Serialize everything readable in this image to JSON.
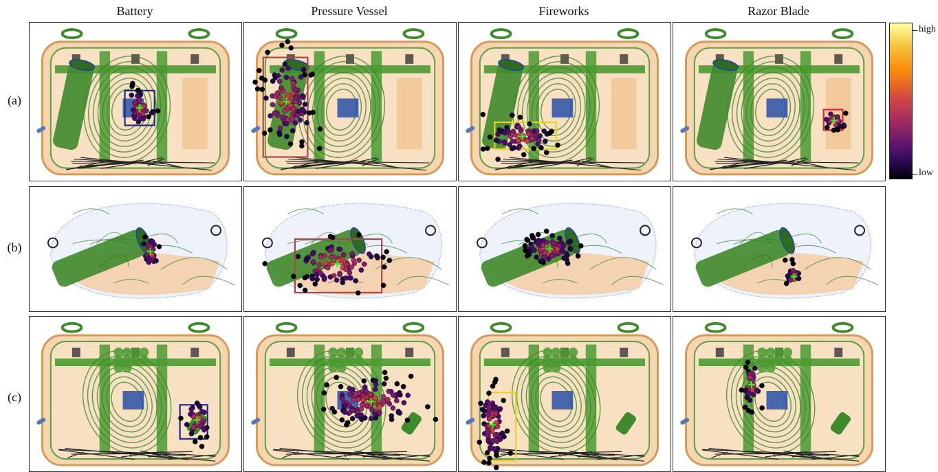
{
  "columns": [
    "Battery",
    "Pressure Vessel",
    "Fireworks",
    "Razor Blade"
  ],
  "rows": [
    "(a)",
    "(b)",
    "(c)"
  ],
  "colorbar": {
    "high_label": "high",
    "low_label": "low",
    "colormap": "inferno",
    "colors": [
      "#fcffa4",
      "#f98c0a",
      "#d44842",
      "#6a176e",
      "#000004"
    ]
  },
  "box_colors": {
    "Battery": "#1f2a8a",
    "Pressure Vessel": "#a8484a",
    "Fireworks": "#e6d41a",
    "Razor Blade": "#e0203a"
  },
  "marker": {
    "symbol": "+",
    "color": "#22ff22"
  }
}
